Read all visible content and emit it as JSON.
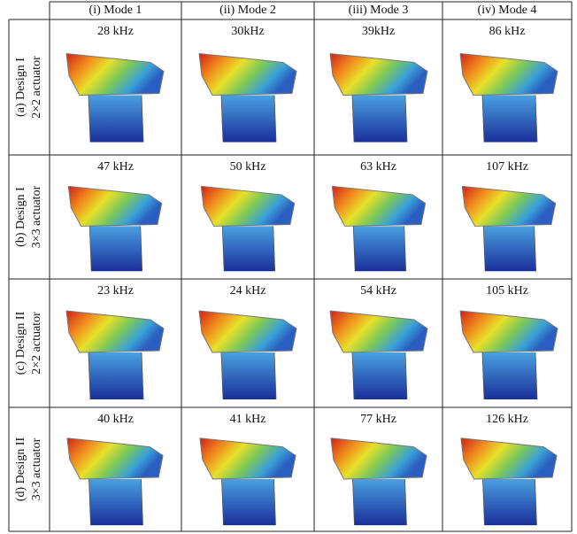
{
  "columns": [
    "(i) Mode 1",
    "(ii) Mode 2",
    "(iii) Mode 3",
    "(iv) Mode 4"
  ],
  "rows": [
    {
      "label": [
        "(a) Design I",
        "2×2 actuator"
      ],
      "frequencies": [
        "28 kHz",
        "30kHz",
        "39kHz",
        "86 kHz"
      ]
    },
    {
      "label": [
        "(b) Design I",
        "3×3 actuator"
      ],
      "frequencies": [
        "47 kHz",
        "50 kHz",
        "63 kHz",
        "107 kHz"
      ]
    },
    {
      "label": [
        "(c) Design II",
        "2×2 actuator"
      ],
      "frequencies": [
        "23 kHz",
        "24 kHz",
        "54 kHz",
        "105 kHz"
      ]
    },
    {
      "label": [
        "(d) Design II",
        "3×3 actuator"
      ],
      "frequencies": [
        "40 kHz",
        "41 kHz",
        "77 kHz",
        "126 kHz"
      ]
    }
  ]
}
